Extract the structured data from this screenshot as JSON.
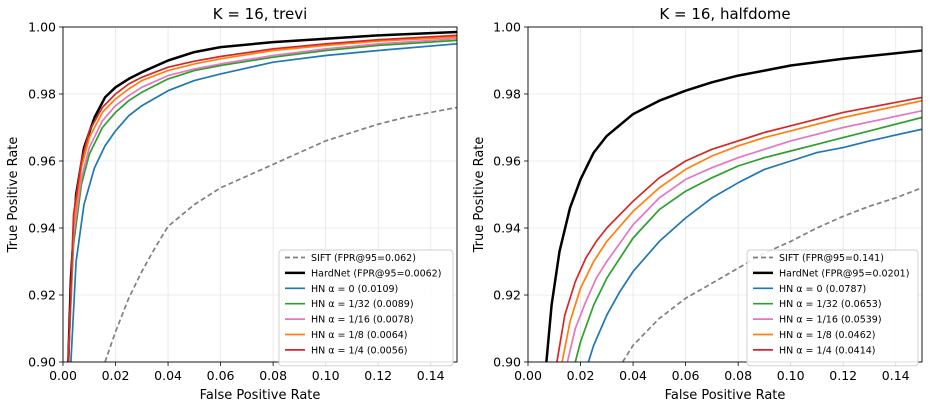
{
  "chart_data": [
    {
      "type": "line",
      "title": "K = 16, trevi",
      "xlabel": "False Positive Rate",
      "ylabel": "True Positive Rate",
      "xlim": [
        0.0,
        0.15
      ],
      "ylim": [
        0.9,
        1.0
      ],
      "xticks": [
        "0.00",
        "0.02",
        "0.04",
        "0.06",
        "0.08",
        "0.10",
        "0.12",
        "0.14"
      ],
      "yticks": [
        "0.90",
        "0.92",
        "0.94",
        "0.96",
        "0.98",
        "1.00"
      ],
      "grid": true,
      "legend_position": "lower-right",
      "series": [
        {
          "name": "SIFT (FPR@95=0.062)",
          "color": "#7f7f7f",
          "dashed": true,
          "x": [
            0.016,
            0.02,
            0.025,
            0.03,
            0.035,
            0.04,
            0.05,
            0.06,
            0.07,
            0.08,
            0.09,
            0.1,
            0.11,
            0.12,
            0.13,
            0.14,
            0.15
          ],
          "y": [
            0.9,
            0.909,
            0.919,
            0.927,
            0.934,
            0.9405,
            0.947,
            0.952,
            0.9555,
            0.959,
            0.9625,
            0.966,
            0.9685,
            0.971,
            0.973,
            0.9745,
            0.976
          ]
        },
        {
          "name": "HardNet (FPR@95=0.0062)",
          "color": "#000000",
          "dashed": false,
          "x": [
            0.002,
            0.003,
            0.005,
            0.008,
            0.012,
            0.016,
            0.02,
            0.025,
            0.03,
            0.04,
            0.05,
            0.06,
            0.08,
            0.1,
            0.12,
            0.15
          ],
          "y": [
            0.9,
            0.925,
            0.95,
            0.964,
            0.973,
            0.979,
            0.982,
            0.9845,
            0.9865,
            0.99,
            0.9925,
            0.994,
            0.9955,
            0.9965,
            0.9975,
            0.9985
          ]
        },
        {
          "name": "HN α = 0 (0.0109)",
          "color": "#1f77b4",
          "dashed": false,
          "x": [
            0.003,
            0.005,
            0.008,
            0.012,
            0.016,
            0.02,
            0.025,
            0.03,
            0.04,
            0.05,
            0.06,
            0.08,
            0.1,
            0.12,
            0.15
          ],
          "y": [
            0.9,
            0.93,
            0.947,
            0.958,
            0.9645,
            0.969,
            0.9735,
            0.9765,
            0.981,
            0.984,
            0.986,
            0.9895,
            0.9915,
            0.993,
            0.995
          ]
        },
        {
          "name": "HN α = 1/32 (0.0089)",
          "color": "#2ca02c",
          "dashed": false,
          "x": [
            0.002,
            0.004,
            0.007,
            0.01,
            0.015,
            0.02,
            0.025,
            0.03,
            0.04,
            0.05,
            0.06,
            0.08,
            0.1,
            0.12,
            0.15
          ],
          "y": [
            0.9,
            0.935,
            0.953,
            0.962,
            0.97,
            0.9745,
            0.978,
            0.9805,
            0.9845,
            0.987,
            0.9885,
            0.991,
            0.993,
            0.9945,
            0.996
          ]
        },
        {
          "name": "HN α = 1/16 (0.0078)",
          "color": "#e377c2",
          "dashed": false,
          "x": [
            0.002,
            0.004,
            0.007,
            0.01,
            0.015,
            0.02,
            0.025,
            0.03,
            0.04,
            0.05,
            0.06,
            0.08,
            0.1,
            0.12,
            0.15
          ],
          "y": [
            0.9,
            0.938,
            0.955,
            0.964,
            0.972,
            0.9765,
            0.9795,
            0.982,
            0.9855,
            0.9875,
            0.989,
            0.9915,
            0.9935,
            0.995,
            0.9965
          ]
        },
        {
          "name": "HN α = 1/8 (0.0064)",
          "color": "#ff7f0e",
          "dashed": false,
          "x": [
            0.002,
            0.004,
            0.007,
            0.01,
            0.015,
            0.02,
            0.025,
            0.03,
            0.04,
            0.05,
            0.06,
            0.08,
            0.1,
            0.12,
            0.15
          ],
          "y": [
            0.9,
            0.941,
            0.958,
            0.967,
            0.9745,
            0.9785,
            0.9815,
            0.984,
            0.987,
            0.989,
            0.9905,
            0.993,
            0.9945,
            0.9958,
            0.997
          ]
        },
        {
          "name": "HN α = 1/4 (0.0056)",
          "color": "#d62728",
          "dashed": false,
          "x": [
            0.002,
            0.004,
            0.007,
            0.01,
            0.015,
            0.02,
            0.025,
            0.03,
            0.04,
            0.05,
            0.06,
            0.08,
            0.1,
            0.12,
            0.15
          ],
          "y": [
            0.9,
            0.944,
            0.96,
            0.969,
            0.976,
            0.98,
            0.983,
            0.985,
            0.988,
            0.9898,
            0.9912,
            0.9935,
            0.995,
            0.9962,
            0.9975
          ]
        }
      ]
    },
    {
      "type": "line",
      "title": "K = 16, halfdome",
      "xlabel": "False Positive Rate",
      "ylabel": "True Positive Rate",
      "xlim": [
        0.0,
        0.15
      ],
      "ylim": [
        0.9,
        1.0
      ],
      "xticks": [
        "0.00",
        "0.02",
        "0.04",
        "0.06",
        "0.08",
        "0.10",
        "0.12",
        "0.14"
      ],
      "yticks": [
        "0.90",
        "0.92",
        "0.94",
        "0.96",
        "0.98",
        "1.00"
      ],
      "grid": true,
      "legend_position": "lower-right",
      "series": [
        {
          "name": "SIFT (FPR@95=0.141)",
          "color": "#7f7f7f",
          "dashed": true,
          "x": [
            0.036,
            0.04,
            0.05,
            0.06,
            0.07,
            0.08,
            0.09,
            0.1,
            0.11,
            0.12,
            0.13,
            0.14,
            0.15
          ],
          "y": [
            0.9,
            0.905,
            0.913,
            0.919,
            0.9235,
            0.928,
            0.9325,
            0.936,
            0.94,
            0.9435,
            0.9465,
            0.949,
            0.952
          ]
        },
        {
          "name": "HardNet (FPR@95=0.0201)",
          "color": "#000000",
          "dashed": false,
          "x": [
            0.007,
            0.009,
            0.012,
            0.016,
            0.02,
            0.025,
            0.03,
            0.04,
            0.05,
            0.06,
            0.07,
            0.08,
            0.09,
            0.1,
            0.12,
            0.15
          ],
          "y": [
            0.9,
            0.917,
            0.933,
            0.946,
            0.9545,
            0.9625,
            0.9675,
            0.974,
            0.978,
            0.981,
            0.9835,
            0.9855,
            0.987,
            0.9885,
            0.9905,
            0.993
          ]
        },
        {
          "name": "HN α = 0 (0.0787)",
          "color": "#1f77b4",
          "dashed": false,
          "x": [
            0.023,
            0.025,
            0.03,
            0.035,
            0.04,
            0.05,
            0.06,
            0.07,
            0.08,
            0.09,
            0.1,
            0.11,
            0.12,
            0.13,
            0.15
          ],
          "y": [
            0.9,
            0.905,
            0.914,
            0.921,
            0.927,
            0.936,
            0.943,
            0.949,
            0.9535,
            0.9575,
            0.96,
            0.9625,
            0.964,
            0.966,
            0.9695
          ]
        },
        {
          "name": "HN α = 1/32 (0.0653)",
          "color": "#2ca02c",
          "dashed": false,
          "x": [
            0.018,
            0.02,
            0.025,
            0.03,
            0.04,
            0.05,
            0.06,
            0.07,
            0.08,
            0.09,
            0.1,
            0.11,
            0.12,
            0.13,
            0.15
          ],
          "y": [
            0.9,
            0.906,
            0.917,
            0.925,
            0.937,
            0.9455,
            0.951,
            0.955,
            0.9585,
            0.961,
            0.963,
            0.965,
            0.967,
            0.969,
            0.973
          ]
        },
        {
          "name": "HN α = 1/16 (0.0539)",
          "color": "#e377c2",
          "dashed": false,
          "x": [
            0.015,
            0.018,
            0.022,
            0.026,
            0.03,
            0.04,
            0.05,
            0.06,
            0.07,
            0.08,
            0.09,
            0.1,
            0.12,
            0.15
          ],
          "y": [
            0.9,
            0.91,
            0.918,
            0.925,
            0.93,
            0.941,
            0.949,
            0.9545,
            0.958,
            0.961,
            0.9635,
            0.966,
            0.97,
            0.975
          ]
        },
        {
          "name": "HN α = 1/8 (0.0462)",
          "color": "#ff7f0e",
          "dashed": false,
          "x": [
            0.013,
            0.016,
            0.02,
            0.025,
            0.03,
            0.04,
            0.05,
            0.06,
            0.07,
            0.08,
            0.09,
            0.1,
            0.12,
            0.15
          ],
          "y": [
            0.9,
            0.912,
            0.922,
            0.93,
            0.936,
            0.945,
            0.952,
            0.9575,
            0.9615,
            0.9645,
            0.967,
            0.969,
            0.973,
            0.978
          ]
        },
        {
          "name": "HN α = 1/4 (0.0414)",
          "color": "#d62728",
          "dashed": false,
          "x": [
            0.011,
            0.014,
            0.018,
            0.022,
            0.026,
            0.03,
            0.04,
            0.05,
            0.06,
            0.07,
            0.08,
            0.09,
            0.1,
            0.12,
            0.15
          ],
          "y": [
            0.9,
            0.914,
            0.924,
            0.931,
            0.936,
            0.94,
            0.948,
            0.955,
            0.96,
            0.9635,
            0.966,
            0.9685,
            0.9705,
            0.9745,
            0.979
          ]
        }
      ]
    }
  ]
}
